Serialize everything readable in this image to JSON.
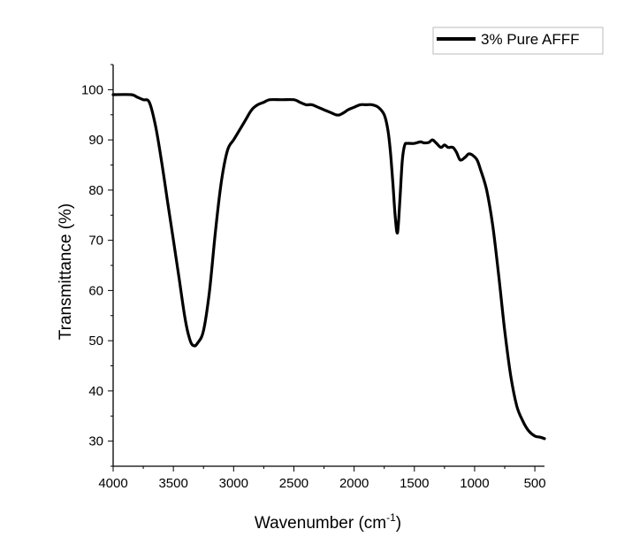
{
  "chart_data": {
    "type": "line",
    "xlabel": "Wavenumber (cm",
    "xlabel_sup": "-1",
    "xlabel_suffix": ")",
    "ylabel": "Transmittance (%)",
    "xlim": [
      4000,
      420
    ],
    "ylim": [
      25,
      105
    ],
    "x_reversed": true,
    "x_ticks": [
      "4000",
      "3500",
      "3000",
      "2500",
      "2000",
      "1500",
      "1000",
      "500"
    ],
    "y_ticks": [
      "30",
      "40",
      "50",
      "60",
      "70",
      "80",
      "90",
      "100"
    ],
    "legend_position": "top-right",
    "grid": false,
    "series": [
      {
        "name": "3% Pure AFFF",
        "color": "#000000",
        "x": [
          4000,
          3850,
          3800,
          3750,
          3700,
          3650,
          3600,
          3550,
          3500,
          3450,
          3400,
          3360,
          3330,
          3300,
          3250,
          3200,
          3150,
          3100,
          3050,
          3000,
          2950,
          2900,
          2850,
          2800,
          2750,
          2700,
          2600,
          2500,
          2450,
          2400,
          2350,
          2300,
          2250,
          2200,
          2150,
          2120,
          2080,
          2050,
          2000,
          1950,
          1900,
          1850,
          1800,
          1750,
          1720,
          1700,
          1680,
          1660,
          1640,
          1620,
          1600,
          1580,
          1560,
          1540,
          1500,
          1450,
          1420,
          1380,
          1350,
          1320,
          1280,
          1250,
          1220,
          1180,
          1150,
          1120,
          1080,
          1050,
          1020,
          980,
          950,
          900,
          850,
          800,
          750,
          700,
          650,
          600,
          550,
          500,
          460,
          420
        ],
        "values": [
          99.0,
          99.0,
          98.5,
          98.0,
          97.5,
          93,
          86,
          78,
          70,
          62,
          54,
          50,
          49,
          49.5,
          52,
          60,
          72,
          82,
          88,
          90,
          92,
          94,
          96,
          97,
          97.5,
          98,
          98,
          98,
          97.5,
          97,
          97,
          96.5,
          96,
          95.5,
          95,
          95,
          95.5,
          96,
          96.5,
          97,
          97,
          97,
          96.5,
          95,
          92,
          88,
          82,
          75,
          71.5,
          78,
          86,
          89,
          89.3,
          89.3,
          89.3,
          89.6,
          89.4,
          89.5,
          90,
          89.4,
          88.5,
          89,
          88.5,
          88.5,
          87.5,
          86,
          86.5,
          87.2,
          87,
          86,
          84,
          80,
          73,
          63,
          52,
          43,
          37,
          34,
          32,
          31,
          30.8,
          30.5
        ]
      }
    ]
  }
}
